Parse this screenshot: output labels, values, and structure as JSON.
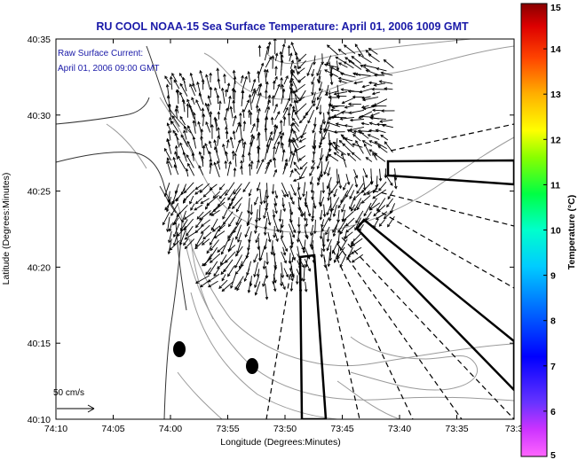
{
  "chart_data": {
    "type": "map",
    "title": "RU COOL  NOAA-15  Sea Surface Temperature:  April 01, 2006 1009 GMT",
    "annotation_lines": [
      "Raw Surface Current:",
      "April 01, 2006 09:00 GMT"
    ],
    "xlabel": "Longitude (Degrees:Minutes)",
    "ylabel": "Latitude (Degrees:Minutes)",
    "x_ticks": [
      "74:10",
      "74:05",
      "74:00",
      "73:55",
      "73:50",
      "73:45",
      "73:40",
      "73:35",
      "73:3"
    ],
    "y_ticks": [
      "40:35",
      "40:30",
      "40:25",
      "40:20",
      "40:15",
      "40:10"
    ],
    "xlim_minutes_west": [
      10,
      -30
    ],
    "ylim_minutes_north": [
      10,
      35
    ],
    "scale_label": "50 cm/s",
    "colorbar": {
      "label": "Temperature (°C)",
      "ticks": [
        "15",
        "14",
        "13",
        "12",
        "11",
        "10",
        "9",
        "8",
        "7",
        "6",
        "5"
      ],
      "range": [
        5,
        15
      ]
    },
    "colors": {
      "title": "#1a1aa8",
      "frame": "#000000",
      "contour": "#9a9a9a",
      "coast": "#333333"
    }
  }
}
